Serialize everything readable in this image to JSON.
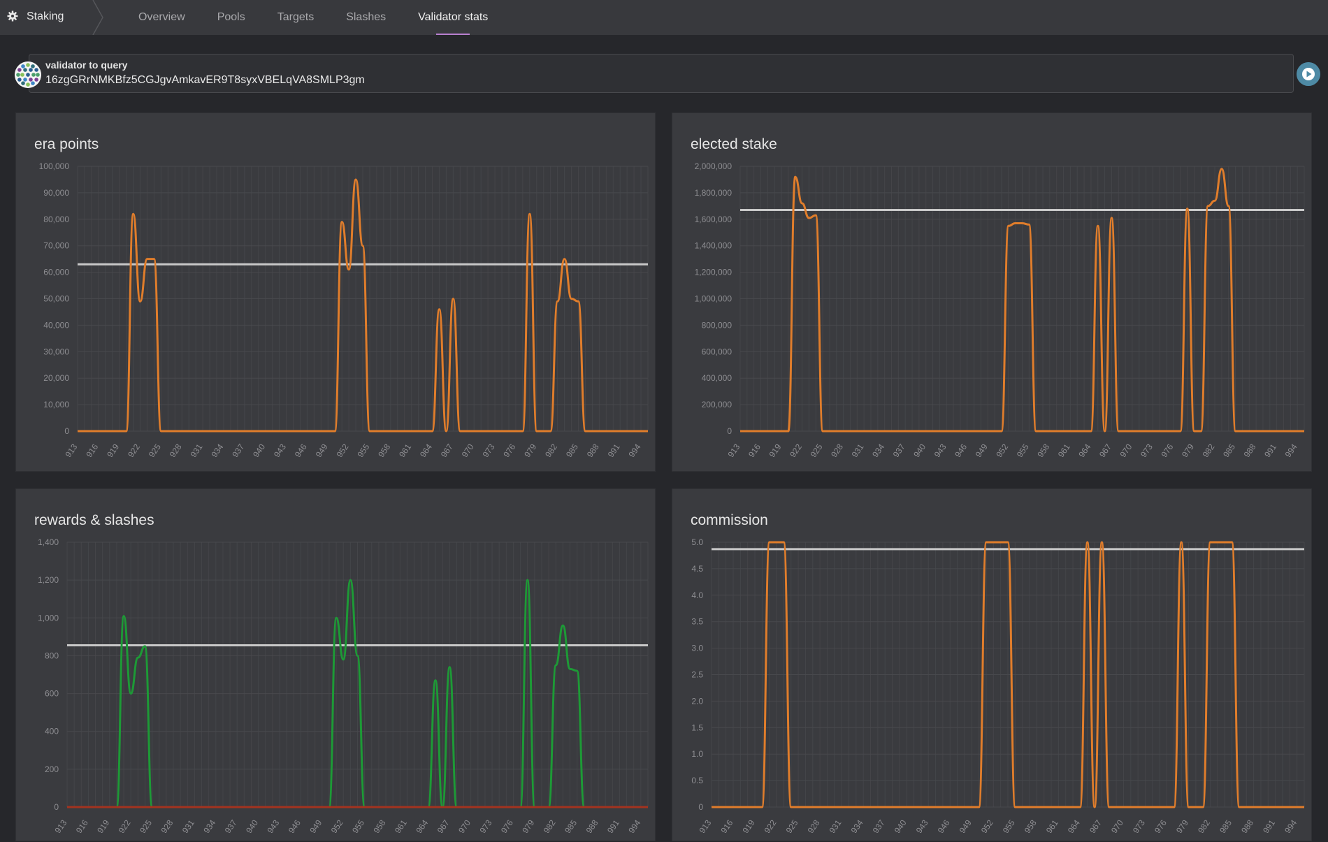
{
  "nav": {
    "brand": "Staking",
    "tabs": [
      {
        "label": "Overview",
        "active": false
      },
      {
        "label": "Pools",
        "active": false
      },
      {
        "label": "Targets",
        "active": false
      },
      {
        "label": "Slashes",
        "active": false
      },
      {
        "label": "Validator stats",
        "active": true
      }
    ]
  },
  "query": {
    "label": "validator to query",
    "value": "16zgGRrNMKBfz5CGJgvAmkavER9T8syxVBELqVA8SMLP3gm",
    "run_icon": "play-icon"
  },
  "colors": {
    "accent": "#e07d2b",
    "green": "#1d9a36",
    "red": "#a3331f",
    "avg_line": "#c9c9c9",
    "tab_underline": "#b87fcf"
  },
  "chart_data": [
    {
      "type": "line",
      "title": "era points",
      "x": [
        913,
        914,
        915,
        916,
        917,
        918,
        919,
        920,
        921,
        922,
        923,
        924,
        925,
        926,
        927,
        928,
        929,
        930,
        931,
        932,
        933,
        934,
        935,
        936,
        937,
        938,
        939,
        940,
        941,
        942,
        943,
        944,
        945,
        946,
        947,
        948,
        949,
        950,
        951,
        952,
        953,
        954,
        955,
        956,
        957,
        958,
        959,
        960,
        961,
        962,
        963,
        964,
        965,
        966,
        967,
        968,
        969,
        970,
        971,
        972,
        973,
        974,
        975,
        976,
        977,
        978,
        979,
        980,
        981,
        982,
        983,
        984,
        985,
        986,
        987,
        988,
        989,
        990,
        991,
        992,
        993,
        994,
        995
      ],
      "xticks": [
        913,
        916,
        919,
        922,
        925,
        928,
        931,
        934,
        937,
        940,
        943,
        946,
        949,
        952,
        955,
        958,
        961,
        964,
        967,
        970,
        973,
        976,
        979,
        982,
        985,
        988,
        991,
        994
      ],
      "ylim": [
        0,
        100000
      ],
      "yticks": [
        "0",
        "10,000",
        "20,000",
        "30,000",
        "40,000",
        "50,000",
        "60,000",
        "70,000",
        "80,000",
        "90,000",
        "100,000"
      ],
      "series": [
        {
          "color": "#e07d2b",
          "values": [
            0,
            0,
            0,
            0,
            0,
            0,
            0,
            0,
            82000,
            49000,
            65000,
            65000,
            0,
            0,
            0,
            0,
            0,
            0,
            0,
            0,
            0,
            0,
            0,
            0,
            0,
            0,
            0,
            0,
            0,
            0,
            0,
            0,
            0,
            0,
            0,
            0,
            0,
            0,
            79000,
            61000,
            95000,
            70000,
            0,
            0,
            0,
            0,
            0,
            0,
            0,
            0,
            0,
            0,
            46000,
            0,
            50000,
            0,
            0,
            0,
            0,
            0,
            0,
            0,
            0,
            0,
            0,
            82000,
            0,
            0,
            0,
            49000,
            65000,
            50000,
            49000,
            0,
            0,
            0,
            0,
            0,
            0,
            0,
            0,
            0,
            0
          ]
        }
      ],
      "average": 63000
    },
    {
      "type": "line",
      "title": "elected stake",
      "x": [
        913,
        914,
        915,
        916,
        917,
        918,
        919,
        920,
        921,
        922,
        923,
        924,
        925,
        926,
        927,
        928,
        929,
        930,
        931,
        932,
        933,
        934,
        935,
        936,
        937,
        938,
        939,
        940,
        941,
        942,
        943,
        944,
        945,
        946,
        947,
        948,
        949,
        950,
        951,
        952,
        953,
        954,
        955,
        956,
        957,
        958,
        959,
        960,
        961,
        962,
        963,
        964,
        965,
        966,
        967,
        968,
        969,
        970,
        971,
        972,
        973,
        974,
        975,
        976,
        977,
        978,
        979,
        980,
        981,
        982,
        983,
        984,
        985,
        986,
        987,
        988,
        989,
        990,
        991,
        992,
        993,
        994,
        995
      ],
      "xticks": [
        913,
        916,
        919,
        922,
        925,
        928,
        931,
        934,
        937,
        940,
        943,
        946,
        949,
        952,
        955,
        958,
        961,
        964,
        967,
        970,
        973,
        976,
        979,
        982,
        985,
        988,
        991,
        994
      ],
      "ylim": [
        0,
        2000000
      ],
      "yticks": [
        "0",
        "200,000",
        "400,000",
        "600,000",
        "800,000",
        "1,000,000",
        "1,200,000",
        "1,400,000",
        "1,600,000",
        "1,800,000",
        "2,000,000"
      ],
      "series": [
        {
          "color": "#e07d2b",
          "values": [
            0,
            0,
            0,
            0,
            0,
            0,
            0,
            0,
            1920000,
            1720000,
            1610000,
            1630000,
            0,
            0,
            0,
            0,
            0,
            0,
            0,
            0,
            0,
            0,
            0,
            0,
            0,
            0,
            0,
            0,
            0,
            0,
            0,
            0,
            0,
            0,
            0,
            0,
            0,
            0,
            0,
            1550000,
            1570000,
            1570000,
            1560000,
            0,
            0,
            0,
            0,
            0,
            0,
            0,
            0,
            0,
            1550000,
            0,
            1610000,
            0,
            0,
            0,
            0,
            0,
            0,
            0,
            0,
            0,
            0,
            1680000,
            0,
            0,
            1700000,
            1740000,
            1980000,
            1700000,
            0,
            0,
            0,
            0,
            0,
            0,
            0,
            0,
            0,
            0,
            0
          ]
        }
      ],
      "average": 1670000
    },
    {
      "type": "line",
      "title": "rewards & slashes",
      "x": [
        913,
        914,
        915,
        916,
        917,
        918,
        919,
        920,
        921,
        922,
        923,
        924,
        925,
        926,
        927,
        928,
        929,
        930,
        931,
        932,
        933,
        934,
        935,
        936,
        937,
        938,
        939,
        940,
        941,
        942,
        943,
        944,
        945,
        946,
        947,
        948,
        949,
        950,
        951,
        952,
        953,
        954,
        955,
        956,
        957,
        958,
        959,
        960,
        961,
        962,
        963,
        964,
        965,
        966,
        967,
        968,
        969,
        970,
        971,
        972,
        973,
        974,
        975,
        976,
        977,
        978,
        979,
        980,
        981,
        982,
        983,
        984,
        985,
        986,
        987,
        988,
        989,
        990,
        991,
        992,
        993,
        994,
        995
      ],
      "xticks": [
        913,
        916,
        919,
        922,
        925,
        928,
        931,
        934,
        937,
        940,
        943,
        946,
        949,
        952,
        955,
        958,
        961,
        964,
        967,
        970,
        973,
        976,
        979,
        982,
        985,
        988,
        991,
        994
      ],
      "ylim": [
        0,
        1400
      ],
      "yticks": [
        "0",
        "200",
        "400",
        "600",
        "800",
        "1,000",
        "1,200",
        "1,400"
      ],
      "series": [
        {
          "color": "#1d9a36",
          "values": [
            0,
            0,
            0,
            0,
            0,
            0,
            0,
            0,
            1010,
            600,
            790,
            850,
            0,
            0,
            0,
            0,
            0,
            0,
            0,
            0,
            0,
            0,
            0,
            0,
            0,
            0,
            0,
            0,
            0,
            0,
            0,
            0,
            0,
            0,
            0,
            0,
            0,
            0,
            1000,
            780,
            1200,
            800,
            0,
            0,
            0,
            0,
            0,
            0,
            0,
            0,
            0,
            0,
            670,
            0,
            740,
            0,
            0,
            0,
            0,
            0,
            0,
            0,
            0,
            0,
            0,
            1200,
            0,
            0,
            0,
            750,
            960,
            730,
            720,
            0,
            0,
            0,
            0,
            0,
            0,
            0,
            0,
            0,
            0
          ]
        },
        {
          "color": "#a3331f",
          "values": [
            0,
            0,
            0,
            0,
            0,
            0,
            0,
            0,
            0,
            0,
            0,
            0,
            0,
            0,
            0,
            0,
            0,
            0,
            0,
            0,
            0,
            0,
            0,
            0,
            0,
            0,
            0,
            0,
            0,
            0,
            0,
            0,
            0,
            0,
            0,
            0,
            0,
            0,
            0,
            0,
            0,
            0,
            0,
            0,
            0,
            0,
            0,
            0,
            0,
            0,
            0,
            0,
            0,
            0,
            0,
            0,
            0,
            0,
            0,
            0,
            0,
            0,
            0,
            0,
            0,
            0,
            0,
            0,
            0,
            0,
            0,
            0,
            0,
            0,
            0,
            0,
            0,
            0,
            0,
            0,
            0,
            0,
            0
          ]
        }
      ],
      "average": 855
    },
    {
      "type": "line",
      "title": "commission",
      "x": [
        913,
        914,
        915,
        916,
        917,
        918,
        919,
        920,
        921,
        922,
        923,
        924,
        925,
        926,
        927,
        928,
        929,
        930,
        931,
        932,
        933,
        934,
        935,
        936,
        937,
        938,
        939,
        940,
        941,
        942,
        943,
        944,
        945,
        946,
        947,
        948,
        949,
        950,
        951,
        952,
        953,
        954,
        955,
        956,
        957,
        958,
        959,
        960,
        961,
        962,
        963,
        964,
        965,
        966,
        967,
        968,
        969,
        970,
        971,
        972,
        973,
        974,
        975,
        976,
        977,
        978,
        979,
        980,
        981,
        982,
        983,
        984,
        985,
        986,
        987,
        988,
        989,
        990,
        991,
        992,
        993,
        994,
        995
      ],
      "xticks": [
        913,
        916,
        919,
        922,
        925,
        928,
        931,
        934,
        937,
        940,
        943,
        946,
        949,
        952,
        955,
        958,
        961,
        964,
        967,
        970,
        973,
        976,
        979,
        982,
        985,
        988,
        991,
        994
      ],
      "ylim": [
        0,
        5
      ],
      "yticks": [
        "0",
        "0.5",
        "1.0",
        "1.5",
        "2.0",
        "2.5",
        "3.0",
        "3.5",
        "4.0",
        "4.5",
        "5.0"
      ],
      "series": [
        {
          "color": "#e07d2b",
          "values": [
            0,
            0,
            0,
            0,
            0,
            0,
            0,
            0,
            5,
            5,
            5,
            0,
            0,
            0,
            0,
            0,
            0,
            0,
            0,
            0,
            0,
            0,
            0,
            0,
            0,
            0,
            0,
            0,
            0,
            0,
            0,
            0,
            0,
            0,
            0,
            0,
            0,
            0,
            5,
            5,
            5,
            5,
            0,
            0,
            0,
            0,
            0,
            0,
            0,
            0,
            0,
            0,
            5,
            0,
            5,
            0,
            0,
            0,
            0,
            0,
            0,
            0,
            0,
            0,
            0,
            5,
            0,
            0,
            0,
            5,
            5,
            5,
            5,
            0,
            0,
            0,
            0,
            0,
            0,
            0,
            0,
            0,
            0
          ]
        }
      ],
      "average": 4.87
    }
  ]
}
